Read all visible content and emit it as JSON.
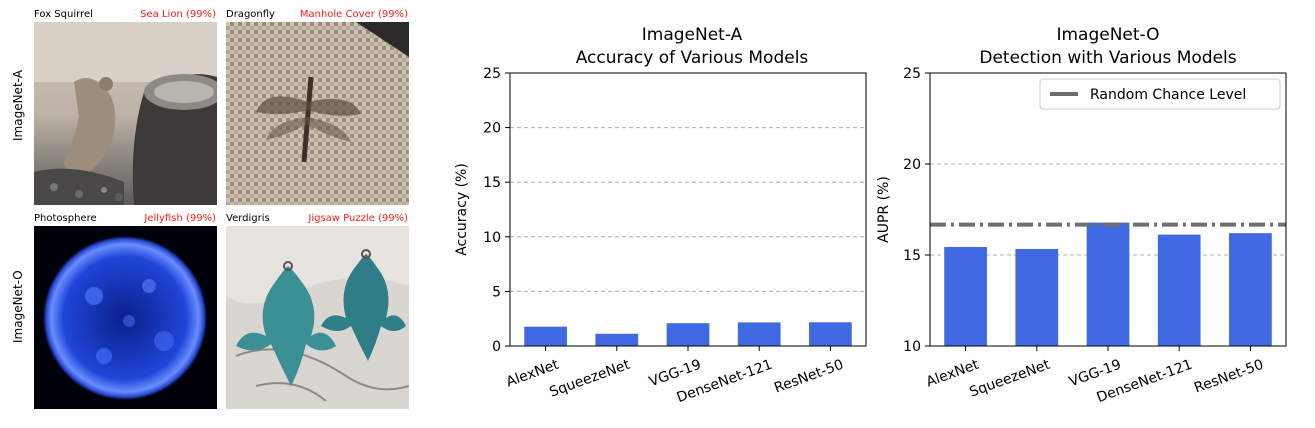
{
  "images": {
    "row_labels": [
      "ImageNet-A",
      "ImageNet-O"
    ],
    "panels": [
      {
        "true_label": "Fox Squirrel",
        "pred_label": "Sea Lion (99%)",
        "subject": "squirrel-photo"
      },
      {
        "true_label": "Dragonfly",
        "pred_label": "Manhole Cover (99%)",
        "subject": "dragonfly-photo"
      },
      {
        "true_label": "Photosphere",
        "pred_label": "Jellyfish (99%)",
        "subject": "sun-photo"
      },
      {
        "true_label": "Verdigris",
        "pred_label": "Jigsaw Puzzle (99%)",
        "subject": "fleur-de-lis-photo"
      }
    ]
  },
  "chart_data": [
    {
      "type": "bar",
      "title": "ImageNet-A\nAccuracy of Various Models",
      "title_lines": [
        "ImageNet-A",
        "Accuracy of Various Models"
      ],
      "xlabel": "",
      "ylabel": "Accuracy (%)",
      "categories": [
        "AlexNet",
        "SqueezeNet",
        "VGG-19",
        "DenseNet-121",
        "ResNet-50"
      ],
      "values": [
        1.77,
        1.12,
        2.09,
        2.16,
        2.17
      ],
      "ylim": [
        0,
        25
      ],
      "yticks": [
        0,
        5,
        10,
        15,
        20,
        25
      ],
      "grid": "horizontal dashed",
      "bar_color": "#4169e1"
    },
    {
      "type": "bar",
      "title": "ImageNet-O\nDetection with Various Models",
      "title_lines": [
        "ImageNet-O",
        "Detection with Various Models"
      ],
      "xlabel": "",
      "ylabel": "AUPR (%)",
      "categories": [
        "AlexNet",
        "SqueezeNet",
        "VGG-19",
        "DenseNet-121",
        "ResNet-50"
      ],
      "values": [
        15.44,
        15.33,
        16.78,
        16.12,
        16.2
      ],
      "ylim": [
        10,
        25
      ],
      "yticks": [
        10,
        15,
        20,
        25
      ],
      "grid": "horizontal dashed",
      "bar_color": "#4169e1",
      "reference_line": {
        "name": "Random Chance Level",
        "value": 16.67,
        "color": "#6e6e6e"
      },
      "legend_position": "top-right"
    }
  ]
}
